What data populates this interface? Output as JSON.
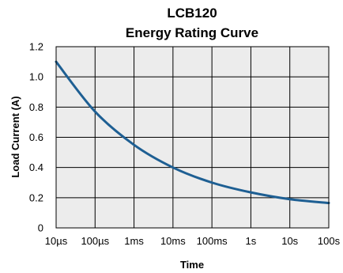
{
  "chart_data": {
    "type": "line",
    "title": "LCB120",
    "subtitle": "Energy Rating Curve",
    "xlabel": "Time",
    "ylabel": "Load Current (A)",
    "x_scale": "log",
    "x_ticks": [
      "10µs",
      "100µs",
      "1ms",
      "10ms",
      "100ms",
      "1s",
      "10s",
      "100s"
    ],
    "y_ticks": [
      "0",
      "0.2",
      "0.4",
      "0.6",
      "0.8",
      "1.0",
      "1.2"
    ],
    "ylim": [
      0,
      1.2
    ],
    "grid": true,
    "colors": {
      "line": "#1e5f93",
      "plot_bg": "#ececec",
      "grid": "#000000"
    },
    "series": [
      {
        "x": [
          "10µs",
          "100µs",
          "1ms",
          "10ms",
          "100ms",
          "1s",
          "10s",
          "100s"
        ],
        "values": [
          1.1,
          0.77,
          0.55,
          0.4,
          0.3,
          0.235,
          0.19,
          0.165
        ]
      }
    ]
  }
}
